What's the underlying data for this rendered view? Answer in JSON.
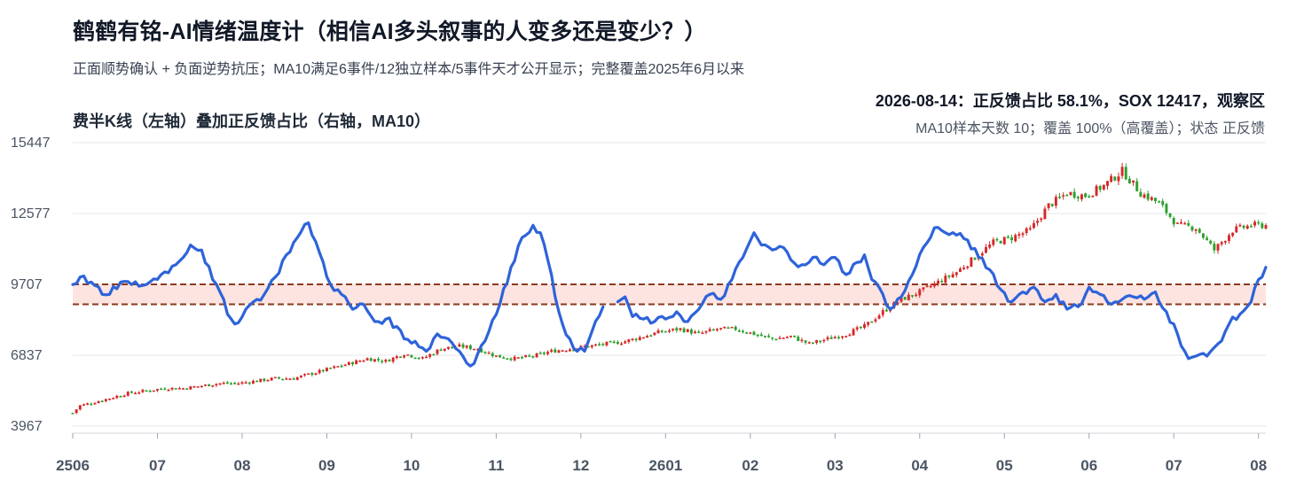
{
  "header": {
    "title": "鹤鹤有铭-AI情绪温度计（相信AI多头叙事的人变多还是变少？）",
    "subtitle": "正面顺势确认 + 负面逆势抗压；MA10满足6事件/12独立样本/5事件天才公开显示；完整覆盖2025年6月以来"
  },
  "status": {
    "line1": "2026-08-14：正反馈占比 58.1%，SOX 12417，观察区",
    "line2": "MA10样本天数 10；覆盖 100%（高覆盖）；状态 正反馈"
  },
  "colors": {
    "up": "#d62728",
    "down": "#2ca02c",
    "line": "#2e63d9",
    "band": "#fde4e1",
    "bandLine": "#8b3a1e",
    "grid": "#e5e7eb"
  },
  "chart_data": {
    "type": "line",
    "title": "费半K线（左轴）叠加正反馈占比（右轴，MA10）",
    "y_left": {
      "ticks": [
        "15447",
        "12577",
        "9707",
        "6837",
        "3967"
      ],
      "range": [
        3967,
        15447
      ]
    },
    "x_ticks": [
      "2506",
      "07",
      "08",
      "09",
      "10",
      "11",
      "12",
      "2601",
      "02",
      "03",
      "04",
      "05",
      "06",
      "07",
      "08"
    ],
    "band_left_values": [
      9707,
      8900
    ],
    "sox_close_path": [
      [
        0,
        4500
      ],
      [
        2,
        4800
      ],
      [
        5,
        4900
      ],
      [
        10,
        5100
      ],
      [
        15,
        5300
      ],
      [
        20,
        5400
      ],
      [
        25,
        5500
      ],
      [
        30,
        5500
      ],
      [
        35,
        5600
      ],
      [
        40,
        5700
      ],
      [
        45,
        5700
      ],
      [
        50,
        5800
      ],
      [
        55,
        5900
      ],
      [
        60,
        5900
      ],
      [
        65,
        6100
      ],
      [
        70,
        6300
      ],
      [
        75,
        6500
      ],
      [
        80,
        6700
      ],
      [
        85,
        6600
      ],
      [
        90,
        6900
      ],
      [
        95,
        6700
      ],
      [
        100,
        7100
      ],
      [
        105,
        7200
      ],
      [
        110,
        7100
      ],
      [
        115,
        6800
      ],
      [
        120,
        6700
      ],
      [
        125,
        6800
      ],
      [
        130,
        7000
      ],
      [
        135,
        7100
      ],
      [
        140,
        7200
      ],
      [
        145,
        7300
      ],
      [
        150,
        7400
      ],
      [
        155,
        7600
      ],
      [
        160,
        7800
      ],
      [
        165,
        7900
      ],
      [
        170,
        7700
      ],
      [
        175,
        7900
      ],
      [
        180,
        7900
      ],
      [
        185,
        7700
      ],
      [
        190,
        7500
      ],
      [
        195,
        7600
      ],
      [
        200,
        7300
      ],
      [
        205,
        7500
      ],
      [
        210,
        7700
      ],
      [
        215,
        8000
      ],
      [
        220,
        8600
      ],
      [
        225,
        9100
      ],
      [
        230,
        9400
      ],
      [
        235,
        9800
      ],
      [
        240,
        10200
      ],
      [
        245,
        10800
      ],
      [
        250,
        11400
      ],
      [
        255,
        11600
      ],
      [
        260,
        11900
      ],
      [
        265,
        12900
      ],
      [
        270,
        13400
      ],
      [
        275,
        13300
      ],
      [
        280,
        13700
      ],
      [
        285,
        14300
      ],
      [
        290,
        13400
      ],
      [
        295,
        13000
      ],
      [
        300,
        12100
      ],
      [
        305,
        12000
      ],
      [
        310,
        11100
      ],
      [
        315,
        11900
      ],
      [
        320,
        12100
      ]
    ],
    "ma10_pct_path": [
      [
        0,
        9700
      ],
      [
        2,
        10000
      ],
      [
        5,
        9800
      ],
      [
        8,
        9300
      ],
      [
        10,
        9300
      ],
      [
        13,
        9800
      ],
      [
        16,
        9700
      ],
      [
        20,
        9700
      ],
      [
        24,
        10100
      ],
      [
        28,
        10500
      ],
      [
        32,
        11300
      ],
      [
        35,
        11100
      ],
      [
        38,
        9900
      ],
      [
        40,
        9400
      ],
      [
        42,
        8500
      ],
      [
        44,
        8100
      ],
      [
        47,
        8700
      ],
      [
        50,
        9100
      ],
      [
        52,
        9300
      ],
      [
        55,
        10000
      ],
      [
        58,
        10900
      ],
      [
        61,
        11600
      ],
      [
        64,
        12200
      ],
      [
        67,
        11000
      ],
      [
        70,
        9700
      ],
      [
        73,
        9300
      ],
      [
        76,
        8700
      ],
      [
        79,
        8900
      ],
      [
        82,
        8200
      ],
      [
        85,
        8300
      ],
      [
        88,
        8000
      ],
      [
        90,
        7500
      ],
      [
        93,
        7400
      ],
      [
        96,
        7000
      ],
      [
        99,
        7700
      ],
      [
        102,
        7500
      ],
      [
        105,
        7000
      ],
      [
        108,
        6400
      ],
      [
        110,
        6900
      ],
      [
        113,
        7800
      ],
      [
        116,
        8900
      ],
      [
        119,
        10400
      ],
      [
        122,
        11600
      ],
      [
        125,
        12100
      ],
      [
        127,
        11800
      ],
      [
        129,
        10700
      ],
      [
        131,
        9200
      ],
      [
        133,
        8100
      ],
      [
        135,
        7500
      ],
      [
        137,
        7000
      ],
      [
        139,
        7000
      ],
      [
        141,
        7800
      ],
      [
        144,
        8800
      ],
      [
        147,
        null
      ],
      [
        148,
        9000
      ],
      [
        150,
        9200
      ],
      [
        152,
        8400
      ],
      [
        155,
        8300
      ],
      [
        158,
        8200
      ],
      [
        161,
        8300
      ],
      [
        164,
        8600
      ],
      [
        167,
        8200
      ],
      [
        170,
        8700
      ],
      [
        173,
        9300
      ],
      [
        176,
        9100
      ],
      [
        179,
        9900
      ],
      [
        182,
        10800
      ],
      [
        185,
        11800
      ],
      [
        187,
        11300
      ],
      [
        190,
        11100
      ],
      [
        193,
        11200
      ],
      [
        195,
        10700
      ],
      [
        198,
        10500
      ],
      [
        201,
        10800
      ],
      [
        204,
        10500
      ],
      [
        207,
        10800
      ],
      [
        210,
        10100
      ],
      [
        213,
        10600
      ],
      [
        215,
        10900
      ],
      [
        217,
        9900
      ],
      [
        220,
        9300
      ],
      [
        222,
        8700
      ],
      [
        225,
        9200
      ],
      [
        228,
        10100
      ],
      [
        231,
        11200
      ],
      [
        234,
        12000
      ],
      [
        237,
        11800
      ],
      [
        240,
        11700
      ],
      [
        243,
        11500
      ],
      [
        246,
        10800
      ],
      [
        249,
        10300
      ],
      [
        252,
        9500
      ],
      [
        255,
        9000
      ],
      [
        258,
        9400
      ],
      [
        261,
        9600
      ],
      [
        264,
        9000
      ],
      [
        267,
        9300
      ],
      [
        270,
        8700
      ],
      [
        273,
        8800
      ],
      [
        276,
        9600
      ],
      [
        279,
        9300
      ],
      [
        282,
        8900
      ],
      [
        285,
        9100
      ],
      [
        288,
        9200
      ],
      [
        291,
        9100
      ],
      [
        294,
        9400
      ],
      [
        297,
        8600
      ],
      [
        300,
        7700
      ],
      [
        303,
        6700
      ],
      [
        305,
        6800
      ],
      [
        308,
        6800
      ],
      [
        311,
        7300
      ],
      [
        314,
        8100
      ],
      [
        317,
        8500
      ],
      [
        320,
        9000
      ],
      [
        322,
        9900
      ],
      [
        324,
        10400
      ]
    ]
  }
}
